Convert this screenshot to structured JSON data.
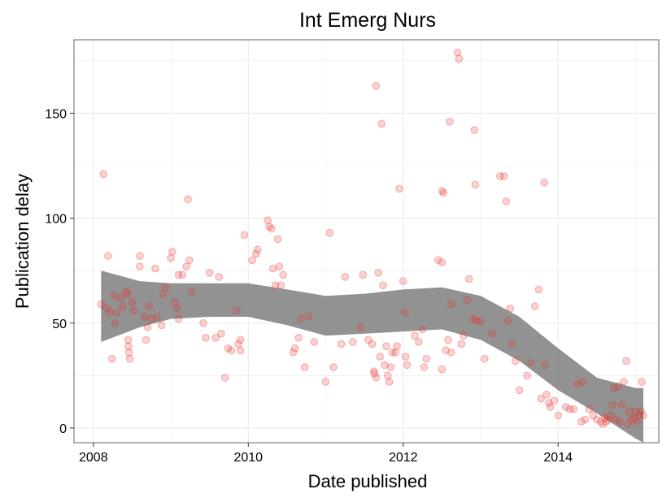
{
  "chart_data": {
    "type": "scatter",
    "title": "Int Emerg Nurs",
    "xlabel": "Date published",
    "ylabel": "Publication delay",
    "xlim": [
      2007.75,
      2015.3
    ],
    "ylim": [
      -7,
      185
    ],
    "x_ticks": [
      2008,
      2010,
      2012,
      2014
    ],
    "x_tick_labels": [
      "2008",
      "2010",
      "2012",
      "2014"
    ],
    "y_ticks": [
      0,
      50,
      100,
      150
    ],
    "y_tick_labels": [
      "0",
      "50",
      "100",
      "150"
    ],
    "grid": true,
    "legend": "none",
    "colors": {
      "points": "#e8322f",
      "ribbon": "#7f7f7f",
      "panel_border": "#7f7f7f",
      "grid": "#ebebeb"
    },
    "points": [
      [
        2008.1,
        59
      ],
      [
        2008.13,
        121
      ],
      [
        2008.17,
        57
      ],
      [
        2008.19,
        82
      ],
      [
        2008.21,
        55
      ],
      [
        2008.24,
        33
      ],
      [
        2008.27,
        63
      ],
      [
        2008.28,
        50
      ],
      [
        2008.3,
        55
      ],
      [
        2008.35,
        62
      ],
      [
        2008.38,
        58
      ],
      [
        2008.42,
        65
      ],
      [
        2008.44,
        64
      ],
      [
        2008.45,
        42
      ],
      [
        2008.45,
        39
      ],
      [
        2008.46,
        36
      ],
      [
        2008.47,
        33
      ],
      [
        2008.5,
        60
      ],
      [
        2008.52,
        56
      ],
      [
        2008.6,
        82
      ],
      [
        2008.6,
        77
      ],
      [
        2008.66,
        53
      ],
      [
        2008.68,
        42
      ],
      [
        2008.7,
        48
      ],
      [
        2008.72,
        58
      ],
      [
        2008.75,
        52
      ],
      [
        2008.8,
        76
      ],
      [
        2008.82,
        53
      ],
      [
        2008.88,
        49
      ],
      [
        2008.9,
        64
      ],
      [
        2008.93,
        67
      ],
      [
        2009.0,
        81
      ],
      [
        2009.02,
        84
      ],
      [
        2009.05,
        60
      ],
      [
        2009.08,
        57
      ],
      [
        2009.1,
        73
      ],
      [
        2009.1,
        52
      ],
      [
        2009.15,
        73
      ],
      [
        2009.2,
        77
      ],
      [
        2009.22,
        109
      ],
      [
        2009.24,
        80
      ],
      [
        2009.27,
        65
      ],
      [
        2009.42,
        50
      ],
      [
        2009.45,
        43
      ],
      [
        2009.5,
        74
      ],
      [
        2009.58,
        43
      ],
      [
        2009.62,
        72
      ],
      [
        2009.65,
        45
      ],
      [
        2009.7,
        24
      ],
      [
        2009.74,
        38
      ],
      [
        2009.78,
        37
      ],
      [
        2009.85,
        56
      ],
      [
        2009.87,
        40
      ],
      [
        2009.9,
        42
      ],
      [
        2009.9,
        37
      ],
      [
        2009.95,
        92
      ],
      [
        2010.05,
        80
      ],
      [
        2010.1,
        83
      ],
      [
        2010.12,
        85
      ],
      [
        2010.25,
        99
      ],
      [
        2010.27,
        96
      ],
      [
        2010.3,
        95
      ],
      [
        2010.32,
        76
      ],
      [
        2010.35,
        68
      ],
      [
        2010.38,
        90
      ],
      [
        2010.4,
        77
      ],
      [
        2010.42,
        68
      ],
      [
        2010.45,
        73
      ],
      [
        2010.58,
        36
      ],
      [
        2010.6,
        38
      ],
      [
        2010.65,
        43
      ],
      [
        2010.68,
        52
      ],
      [
        2010.73,
        29
      ],
      [
        2010.78,
        53
      ],
      [
        2010.85,
        41
      ],
      [
        2011.0,
        22
      ],
      [
        2011.05,
        93
      ],
      [
        2011.1,
        29
      ],
      [
        2011.2,
        40
      ],
      [
        2011.25,
        72
      ],
      [
        2011.35,
        41
      ],
      [
        2011.45,
        48
      ],
      [
        2011.48,
        73
      ],
      [
        2011.55,
        42
      ],
      [
        2011.6,
        40
      ],
      [
        2011.62,
        27
      ],
      [
        2011.63,
        26
      ],
      [
        2011.65,
        24
      ],
      [
        2011.65,
        163
      ],
      [
        2011.68,
        74
      ],
      [
        2011.7,
        34
      ],
      [
        2011.72,
        145
      ],
      [
        2011.74,
        68
      ],
      [
        2011.76,
        30
      ],
      [
        2011.78,
        39
      ],
      [
        2011.8,
        25
      ],
      [
        2011.82,
        22
      ],
      [
        2011.84,
        29
      ],
      [
        2011.86,
        36
      ],
      [
        2011.9,
        36
      ],
      [
        2011.92,
        39
      ],
      [
        2011.95,
        114
      ],
      [
        2012.0,
        70
      ],
      [
        2012.02,
        55
      ],
      [
        2012.03,
        34
      ],
      [
        2012.05,
        30
      ],
      [
        2012.15,
        44
      ],
      [
        2012.2,
        41
      ],
      [
        2012.25,
        47
      ],
      [
        2012.27,
        29
      ],
      [
        2012.3,
        33
      ],
      [
        2012.45,
        80
      ],
      [
        2012.5,
        79
      ],
      [
        2012.5,
        28
      ],
      [
        2012.5,
        113
      ],
      [
        2012.52,
        112
      ],
      [
        2012.55,
        37
      ],
      [
        2012.58,
        42
      ],
      [
        2012.6,
        146
      ],
      [
        2012.62,
        36
      ],
      [
        2012.62,
        59
      ],
      [
        2012.7,
        179
      ],
      [
        2012.72,
        176
      ],
      [
        2012.75,
        40
      ],
      [
        2012.78,
        44
      ],
      [
        2012.83,
        61
      ],
      [
        2012.85,
        71
      ],
      [
        2012.9,
        52
      ],
      [
        2012.92,
        142
      ],
      [
        2012.93,
        116
      ],
      [
        2012.95,
        51
      ],
      [
        2013.0,
        51
      ],
      [
        2013.05,
        33
      ],
      [
        2013.15,
        45
      ],
      [
        2013.25,
        120
      ],
      [
        2013.3,
        120
      ],
      [
        2013.33,
        108
      ],
      [
        2013.35,
        51
      ],
      [
        2013.38,
        57
      ],
      [
        2013.4,
        40
      ],
      [
        2013.45,
        32
      ],
      [
        2013.5,
        18
      ],
      [
        2013.6,
        25
      ],
      [
        2013.65,
        31
      ],
      [
        2013.7,
        58
      ],
      [
        2013.75,
        66
      ],
      [
        2013.78,
        14
      ],
      [
        2013.82,
        117
      ],
      [
        2013.83,
        30
      ],
      [
        2013.85,
        16
      ],
      [
        2013.88,
        12
      ],
      [
        2013.9,
        10
      ],
      [
        2013.95,
        13
      ],
      [
        2014.0,
        6
      ],
      [
        2014.1,
        10
      ],
      [
        2014.15,
        9
      ],
      [
        2014.2,
        9
      ],
      [
        2014.25,
        21
      ],
      [
        2014.3,
        3
      ],
      [
        2014.32,
        22
      ],
      [
        2014.35,
        4
      ],
      [
        2014.4,
        9
      ],
      [
        2014.45,
        6
      ],
      [
        2014.5,
        4
      ],
      [
        2014.55,
        3
      ],
      [
        2014.58,
        2
      ],
      [
        2014.6,
        5
      ],
      [
        2014.62,
        3
      ],
      [
        2014.65,
        4
      ],
      [
        2014.68,
        6
      ],
      [
        2014.7,
        11
      ],
      [
        2014.72,
        19
      ],
      [
        2014.75,
        4
      ],
      [
        2014.78,
        20
      ],
      [
        2014.8,
        3
      ],
      [
        2014.82,
        11
      ],
      [
        2014.85,
        22
      ],
      [
        2014.88,
        32
      ],
      [
        2014.9,
        2
      ],
      [
        2014.92,
        8
      ],
      [
        2014.95,
        4
      ],
      [
        2014.98,
        5
      ],
      [
        2015.0,
        8
      ],
      [
        2015.02,
        3
      ],
      [
        2015.05,
        6
      ],
      [
        2015.07,
        8
      ],
      [
        2015.08,
        22
      ],
      [
        2015.1,
        6
      ]
    ],
    "smooth": {
      "x": [
        2008.1,
        2008.6,
        2009.0,
        2009.5,
        2010.0,
        2010.5,
        2011.0,
        2011.5,
        2012.0,
        2012.5,
        2013.0,
        2013.5,
        2014.0,
        2014.5,
        2015.0,
        2015.1
      ],
      "lower": [
        41,
        48,
        52,
        53,
        53,
        49,
        44,
        45,
        46,
        47,
        42,
        32,
        18,
        7,
        -5,
        -7
      ],
      "upper": [
        75,
        70,
        69,
        69,
        69,
        66,
        63,
        64,
        66,
        67,
        63,
        53,
        38,
        24,
        19,
        19
      ]
    }
  }
}
